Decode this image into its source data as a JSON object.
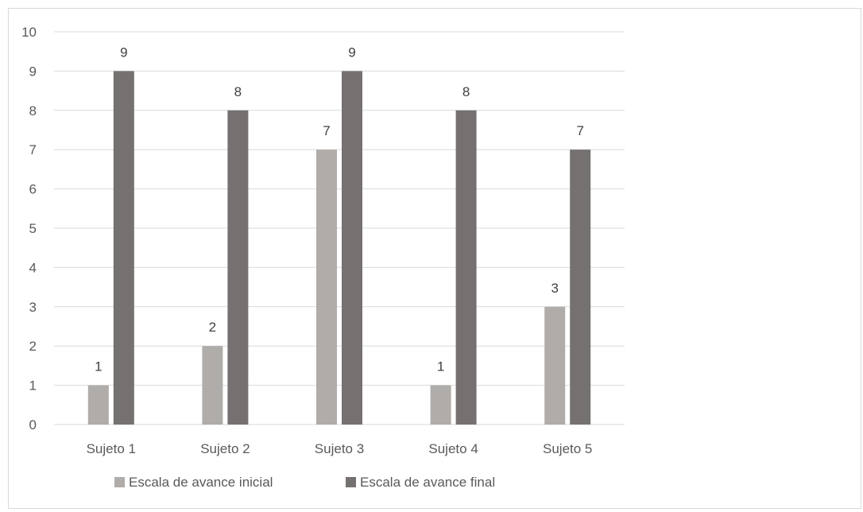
{
  "chart_data": {
    "type": "bar",
    "title": "",
    "xlabel": "",
    "ylabel": "",
    "categories": [
      "Sujeto 1",
      "Sujeto 2",
      "Sujeto 3",
      "Sujeto 4",
      "Sujeto 5"
    ],
    "series": [
      {
        "name": "Escala de avance inicial",
        "values": [
          1,
          2,
          7,
          1,
          3
        ],
        "color": "#b0acaa"
      },
      {
        "name": "Escala de avance final",
        "values": [
          9,
          8,
          9,
          8,
          7
        ],
        "color": "#767171"
      }
    ],
    "ylim": [
      0,
      10
    ],
    "yticks": [
      0,
      1,
      2,
      3,
      4,
      5,
      6,
      7,
      8,
      9,
      10
    ],
    "grid": true,
    "gridline_color": "#d9d9d9",
    "data_labels": true,
    "legend_position": "bottom"
  }
}
